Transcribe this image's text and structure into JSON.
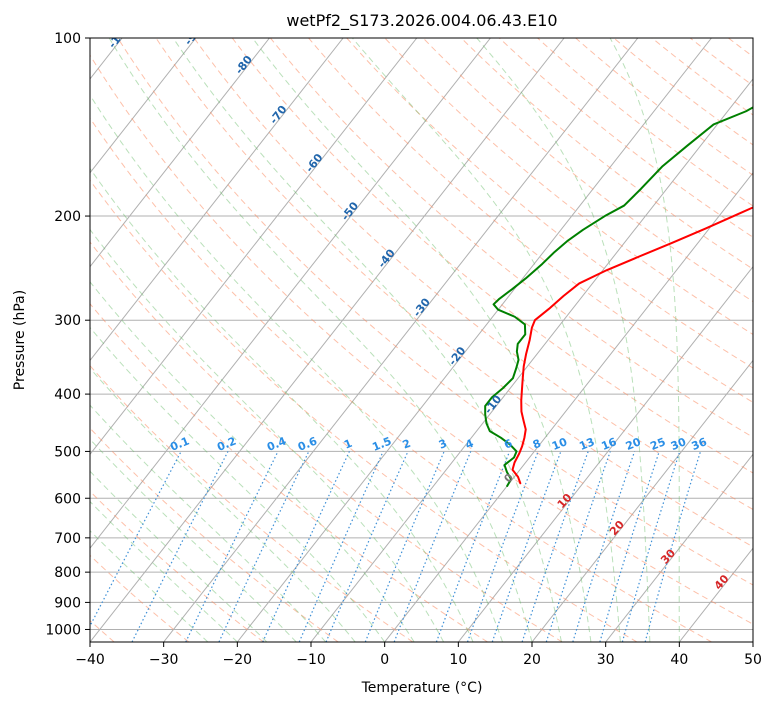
{
  "chart_data": {
    "type": "line",
    "title": "wetPf2_S173.2026.004.06.43.E10",
    "xlabel": "Temperature (°C)",
    "ylabel": "Pressure (hPa)",
    "xlim": [
      -40,
      50
    ],
    "ylim": [
      1050,
      100
    ],
    "y_scale": "log",
    "x_ticks": [
      -40,
      -30,
      -20,
      -10,
      0,
      10,
      20,
      30,
      40,
      50
    ],
    "x_tick_labels": [
      "−40",
      "−30",
      "−20",
      "−10",
      "0",
      "10",
      "20",
      "30",
      "40",
      "50"
    ],
    "y_ticks": [
      100,
      200,
      300,
      400,
      500,
      600,
      700,
      800,
      900,
      1000
    ],
    "y_tick_labels": [
      "100",
      "200",
      "300",
      "400",
      "500",
      "600",
      "700",
      "800",
      "900",
      "1000"
    ],
    "grid": true,
    "series": [
      {
        "name": "temperature",
        "color": "#ff0000",
        "points": [
          [
            1.5,
            566
          ],
          [
            0.5,
            552
          ],
          [
            -1,
            537
          ],
          [
            -1.5,
            522
          ],
          [
            -1.8,
            505
          ],
          [
            -2.2,
            490
          ],
          [
            -2.8,
            474
          ],
          [
            -3.5,
            459
          ],
          [
            -4.7,
            444
          ],
          [
            -6,
            428
          ],
          [
            -7.2,
            410
          ],
          [
            -8.2,
            394
          ],
          [
            -9.3,
            377
          ],
          [
            -10.5,
            359
          ],
          [
            -11.5,
            342
          ],
          [
            -12.5,
            324
          ],
          [
            -13.5,
            309
          ],
          [
            -13.9,
            300
          ],
          [
            -13.2,
            287
          ],
          [
            -12.6,
            273
          ],
          [
            -11.8,
            260
          ],
          [
            -9.5,
            247
          ],
          [
            -6.5,
            234
          ],
          [
            -3.5,
            222
          ],
          [
            -0.5,
            210
          ],
          [
            2.5,
            198
          ],
          [
            6.5,
            183
          ],
          [
            10.5,
            170
          ],
          [
            13.5,
            158
          ],
          [
            15.5,
            147
          ],
          [
            17,
            136
          ],
          [
            18.7,
            127
          ],
          [
            20.6,
            120
          ],
          [
            23,
            113
          ],
          [
            24.5,
            107
          ],
          [
            26,
            102
          ],
          [
            26.5,
            100
          ]
        ]
      },
      {
        "name": "dewpoint",
        "color": "#008000",
        "points": [
          [
            0,
            572
          ],
          [
            -0.2,
            557
          ],
          [
            -1.5,
            542
          ],
          [
            -2.6,
            527
          ],
          [
            -2.1,
            512
          ],
          [
            -2.4,
            500
          ],
          [
            -4,
            487
          ],
          [
            -6,
            474
          ],
          [
            -8.2,
            462
          ],
          [
            -9.5,
            448
          ],
          [
            -10.6,
            433
          ],
          [
            -11.5,
            419
          ],
          [
            -11.5,
            405
          ],
          [
            -11,
            391
          ],
          [
            -10.7,
            376
          ],
          [
            -11.3,
            362
          ],
          [
            -11.9,
            350
          ],
          [
            -13,
            339
          ],
          [
            -13.7,
            329
          ],
          [
            -13.7,
            317
          ],
          [
            -14.8,
            305
          ],
          [
            -17,
            296
          ],
          [
            -20,
            288
          ],
          [
            -21.2,
            282
          ],
          [
            -21,
            276
          ],
          [
            -20.3,
            266
          ],
          [
            -19.6,
            255
          ],
          [
            -18.9,
            241
          ],
          [
            -18.5,
            230
          ],
          [
            -17.9,
            220
          ],
          [
            -17,
            211
          ],
          [
            -15.5,
            200
          ],
          [
            -14,
            192
          ],
          [
            -13.5,
            180
          ],
          [
            -13,
            165
          ],
          [
            -11.8,
            152
          ],
          [
            -10.5,
            140
          ],
          [
            -7.5,
            133
          ],
          [
            -5,
            124
          ],
          [
            -2.5,
            116
          ],
          [
            -0.5,
            110
          ],
          [
            1.5,
            104
          ],
          [
            3,
            100
          ]
        ]
      }
    ],
    "isotherm_labels": [
      "-100",
      "-90",
      "-80",
      "-70",
      "-60",
      "-50",
      "-40",
      "-30",
      "-20",
      "-10"
    ],
    "dry_adiabat_labels": [
      "0",
      "10",
      "20",
      "30",
      "40"
    ],
    "mixing_ratio_labels": [
      "0.1",
      "0.2",
      "0.4",
      "0.6",
      "1",
      "1.5",
      "2",
      "3",
      "4",
      "6",
      "8",
      "10",
      "13",
      "16",
      "20",
      "25",
      "30",
      "36"
    ],
    "colors": {
      "grid": "#b0b0b0",
      "isotherm": "#2166ac",
      "dry_adiabat": "#fc8d62",
      "dry_adiabat_label": "#d62728",
      "moist_adiabat": "#66bb66",
      "mixing_ratio": "#3d8fd6",
      "mixing_ratio_label": "#2a8ee6",
      "temperature": "#ff0000",
      "dewpoint": "#008000"
    }
  }
}
